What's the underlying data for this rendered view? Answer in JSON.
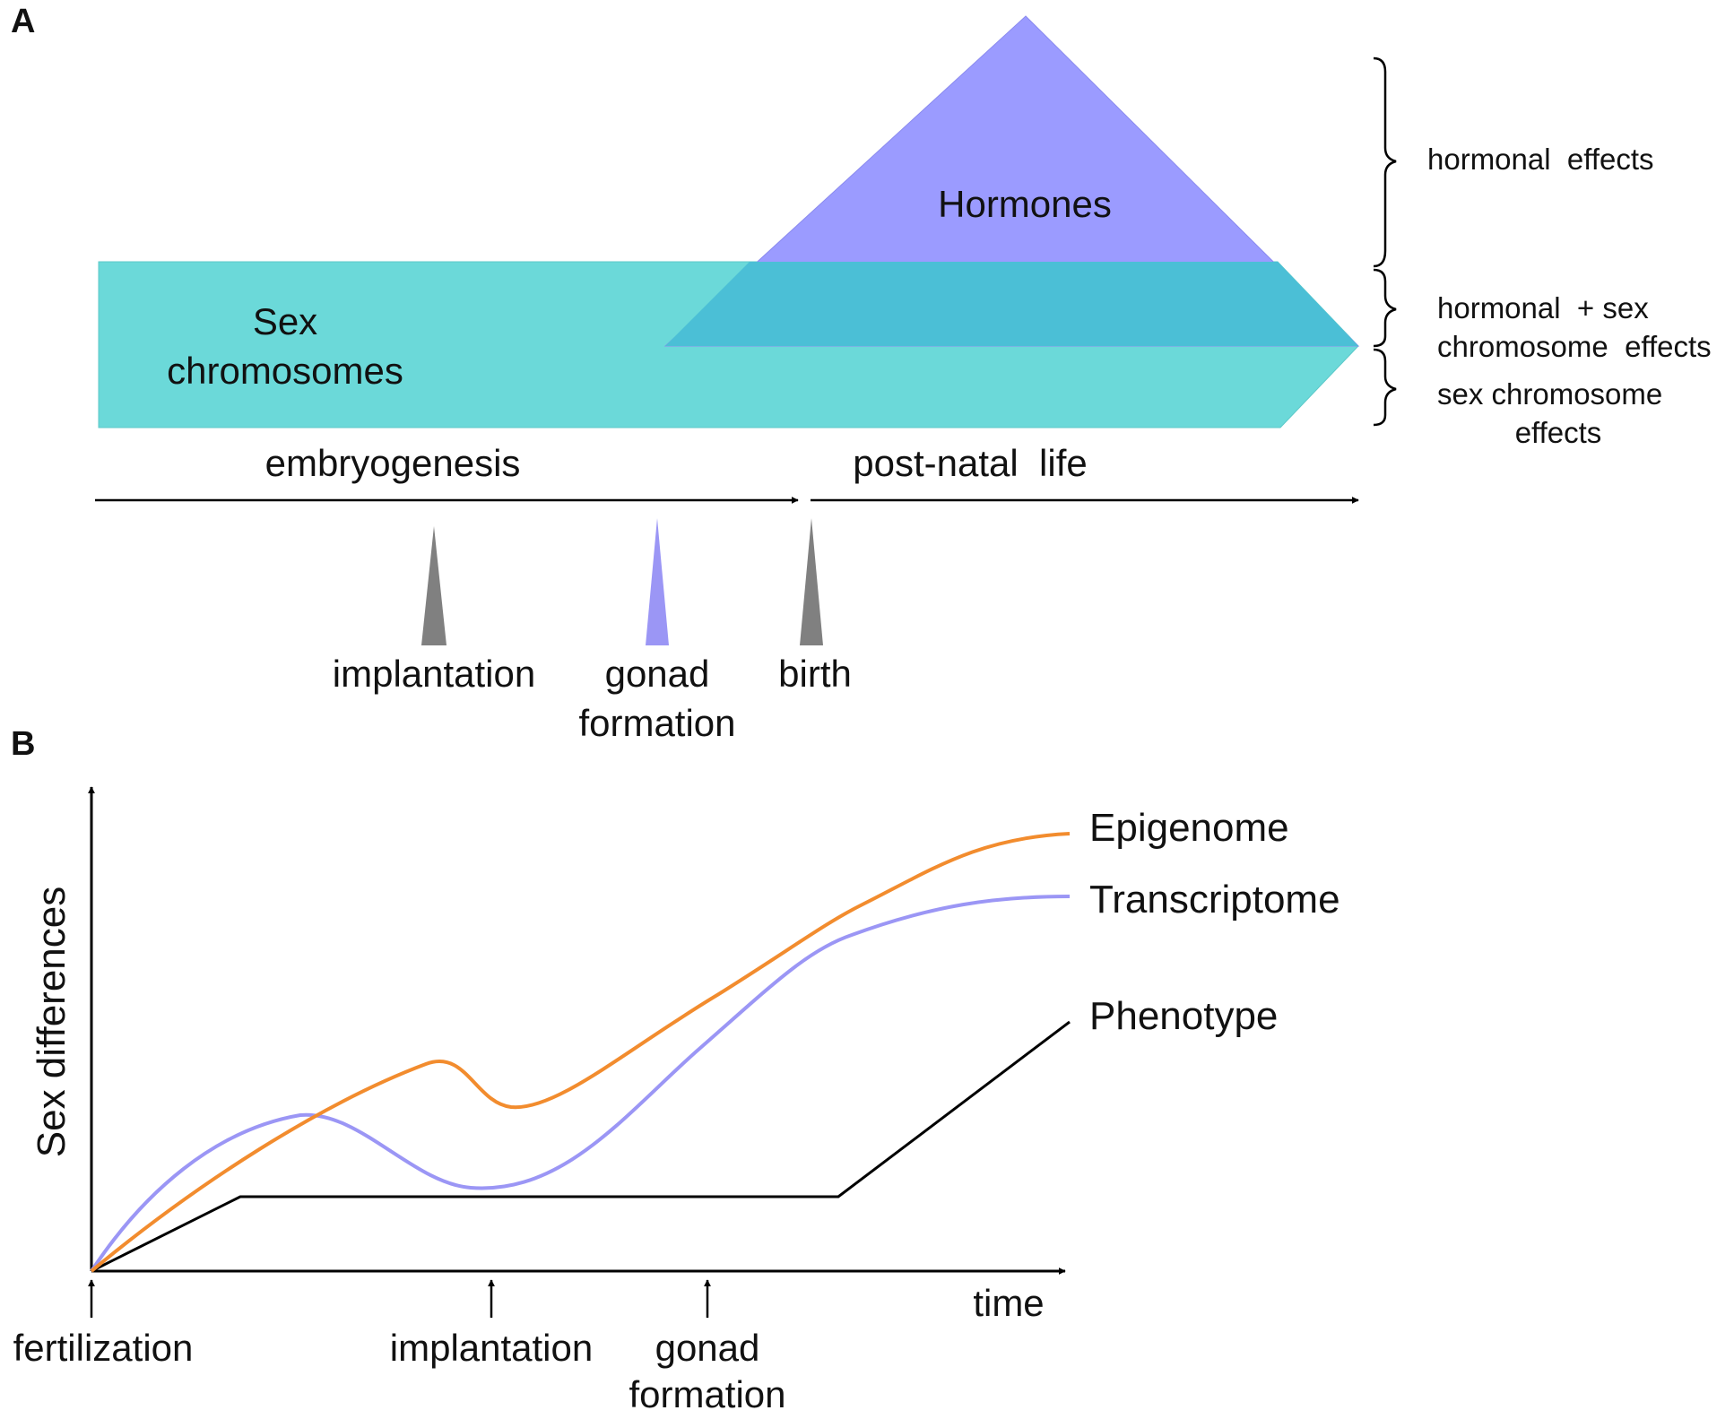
{
  "panel_a": {
    "letter": "A",
    "hormones_label": "Hormones",
    "sex_chromosomes_label": [
      "Sex",
      "chromosomes"
    ],
    "brackets": {
      "hormonal": "hormonal  effects",
      "mixed": [
        "hormonal  + sex",
        "chromosome  effects"
      ],
      "sex": [
        "sex chromosome",
        "effects"
      ]
    },
    "timeline": {
      "embryogenesis": "embryogenesis",
      "postnatal": "post-natal  life"
    },
    "events": [
      {
        "label": [
          "implantation"
        ],
        "color": "#808080"
      },
      {
        "label": [
          "gonad",
          "formation"
        ],
        "color": "#9b96f5"
      },
      {
        "label": [
          "birth"
        ],
        "color": "#808080"
      }
    ],
    "colors": {
      "hormones": "#9b9bff",
      "sex_chromosomes": "#6bd9d9",
      "overlap": "#4bbfd6"
    }
  },
  "panel_b": {
    "letter": "B",
    "ylabel": "Sex differences",
    "xlabel": "time",
    "series": [
      {
        "name": "Epigenome",
        "color": "#f28c2e"
      },
      {
        "name": "Transcriptome",
        "color": "#9b96f5"
      },
      {
        "name": "Phenotype",
        "color": "#000000"
      }
    ],
    "markers": [
      {
        "label": [
          "fertilization"
        ]
      },
      {
        "label": [
          "implantation"
        ]
      },
      {
        "label": [
          "gonad",
          "formation"
        ]
      }
    ]
  }
}
